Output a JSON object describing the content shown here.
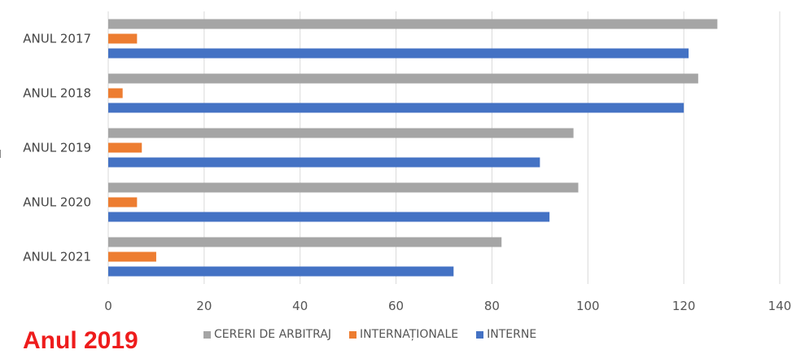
{
  "chart_data": {
    "type": "bar",
    "orientation": "horizontal",
    "categories": [
      "ANUL 2017",
      "ANUL 2018",
      "ANUL 2019",
      "ANUL 2020",
      "ANUL 2021"
    ],
    "series": [
      {
        "name": "CERERI DE ARBITRAJ",
        "color": "#a5a5a5",
        "values": [
          127,
          123,
          97,
          98,
          82
        ]
      },
      {
        "name": "INTERNAȚIONALE",
        "color": "#ed7d31",
        "values": [
          6,
          3,
          7,
          6,
          10
        ]
      },
      {
        "name": "INTERNE",
        "color": "#4472c4",
        "values": [
          121,
          120,
          90,
          92,
          72
        ]
      }
    ],
    "xlim": [
      0,
      140
    ],
    "xticks": [
      0,
      20,
      40,
      60,
      80,
      100,
      120,
      140
    ],
    "grid": true,
    "legend_position": "bottom"
  },
  "overlay_text": "Anul 2019"
}
